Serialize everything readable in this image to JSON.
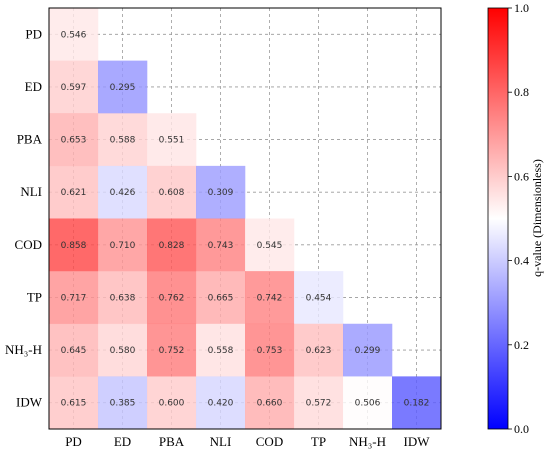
{
  "chart_data": {
    "type": "heatmap",
    "title": "",
    "xlabel": "",
    "ylabel": "",
    "categories": [
      "PD",
      "ED",
      "PBA",
      "NLI",
      "COD",
      "TP",
      "NH₃-H",
      "IDW"
    ],
    "rows": [
      [
        "0.546"
      ],
      [
        "0.597",
        "0.295"
      ],
      [
        "0.653",
        "0.588",
        "0.551"
      ],
      [
        "0.621",
        "0.426",
        "0.608",
        "0.309"
      ],
      [
        "0.858",
        "0.710",
        "0.828",
        "0.743",
        "0.545"
      ],
      [
        "0.717",
        "0.638",
        "0.762",
        "0.665",
        "0.742",
        "0.454"
      ],
      [
        "0.645",
        "0.580",
        "0.752",
        "0.558",
        "0.753",
        "0.623",
        "0.299"
      ],
      [
        "0.615",
        "0.385",
        "0.600",
        "0.420",
        "0.660",
        "0.572",
        "0.506",
        "0.182"
      ]
    ],
    "colorbar": {
      "label": "q-value (Dimensionless)",
      "range": [
        0.0,
        1.0
      ],
      "ticks": [
        "0.0",
        "0.2",
        "0.4",
        "0.6",
        "0.8",
        "1.0"
      ],
      "colormap": "bwr",
      "low_color": "#0000ff",
      "mid_color": "#ffffff",
      "high_color": "#ff0000"
    },
    "grid": true,
    "grid_style": "dashed"
  }
}
